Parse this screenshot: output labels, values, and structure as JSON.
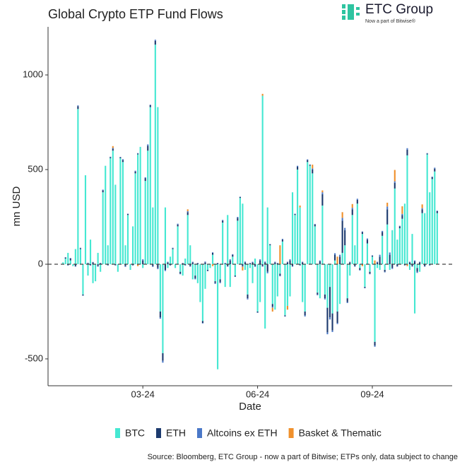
{
  "chart_data": {
    "type": "bar",
    "stacked": true,
    "title": "Global Crypto ETP Fund Flows",
    "logo_text": "ETC Group",
    "logo_subtext": "Now a part of Bitwise®",
    "xlabel": "Date",
    "ylabel": "mn USD",
    "source": "Source: Bloomberg, ETC Group - now a part of Bitwise; ETPs only, data subject to change",
    "legend": "bottom",
    "hline": 0,
    "xlim": [
      -6,
      156
    ],
    "ylim": [
      -642,
      1254
    ],
    "yticks": [
      -500,
      0,
      500,
      1000
    ],
    "xticks": [
      {
        "value": 32,
        "label": "03-24"
      },
      {
        "value": 78,
        "label": "06-24"
      },
      {
        "value": 124,
        "label": "09-24"
      }
    ],
    "categories": [
      null,
      null,
      null,
      null,
      null,
      null,
      null,
      null,
      null,
      null,
      null,
      null,
      null,
      null,
      null,
      null,
      null,
      null,
      null,
      null,
      null,
      null,
      null,
      null,
      null,
      null,
      null,
      null,
      null,
      null,
      null,
      null,
      null,
      null,
      null,
      null,
      null,
      null,
      null,
      null,
      null,
      null,
      null,
      null,
      null,
      null,
      null,
      null,
      null,
      null,
      null,
      null,
      null,
      null,
      null,
      null,
      null,
      null,
      null,
      null,
      null,
      null,
      null,
      null,
      null,
      null,
      null,
      null,
      null,
      null,
      null,
      null,
      null,
      null,
      null,
      null,
      null,
      null,
      null,
      null,
      null,
      null,
      null,
      null,
      null,
      null,
      null,
      null,
      null,
      null,
      null,
      null,
      null,
      null,
      null,
      null,
      null,
      null,
      null,
      null,
      null,
      null,
      null,
      null,
      null,
      null,
      null,
      null,
      null,
      null,
      null,
      null,
      null,
      null,
      null,
      null,
      null,
      null,
      null,
      null,
      null,
      null,
      null,
      null,
      null,
      null,
      null,
      null,
      null,
      null,
      null,
      null,
      null,
      null,
      null,
      null,
      null,
      null,
      null,
      null,
      null,
      null,
      null,
      null,
      null,
      null,
      null,
      null,
      null,
      null,
      null
    ],
    "series": [
      {
        "name": "BTC",
        "color": "#45e8d2",
        "values": [
          10,
          30,
          60,
          20,
          -10,
          80,
          820,
          80,
          -160,
          470,
          -60,
          130,
          -100,
          -90,
          60,
          -40,
          380,
          520,
          100,
          560,
          600,
          420,
          -40,
          560,
          540,
          100,
          260,
          -30,
          200,
          480,
          580,
          620,
          -20,
          440,
          600,
          830,
          300,
          1160,
          830,
          -250,
          -470,
          300,
          -20,
          40,
          80,
          -20,
          200,
          -40,
          -60,
          30,
          260,
          100,
          -80,
          -60,
          -100,
          -200,
          -300,
          -130,
          -30,
          -20,
          50,
          -90,
          -555,
          -80,
          220,
          -120,
          260,
          -120,
          40,
          -60,
          230,
          350,
          320,
          -30,
          -160,
          -20,
          -100,
          30,
          -250,
          -200,
          890,
          -340,
          300,
          100,
          -210,
          -240,
          -170,
          -50,
          120,
          -270,
          -220,
          -170,
          380,
          260,
          500,
          300,
          -200,
          -250,
          540,
          520,
          480,
          200,
          -150,
          -180,
          310,
          -160,
          -230,
          -120,
          -260,
          20,
          -250,
          -210,
          60,
          100,
          -180,
          -60,
          260,
          100,
          320,
          -20,
          160,
          -120,
          110,
          -40,
          40,
          -410,
          -20,
          -30,
          150,
          -30,
          210,
          -30,
          180,
          400,
          130,
          190,
          240,
          320,
          575,
          -30,
          160,
          -260,
          -20,
          -40,
          270,
          270,
          580,
          380,
          450,
          490,
          270
        ]
      },
      {
        "name": "ETH",
        "color": "#1c3a6e",
        "values": [
          0,
          5,
          -5,
          10,
          0,
          -10,
          15,
          5,
          -5,
          0,
          5,
          -5,
          10,
          0,
          -10,
          5,
          10,
          0,
          -5,
          5,
          10,
          -5,
          0,
          5,
          10,
          -10,
          5,
          0,
          -5,
          10,
          5,
          0,
          20,
          15,
          25,
          10,
          -10,
          20,
          -20,
          -30,
          -40,
          -30,
          10,
          -5,
          5,
          0,
          10,
          -10,
          5,
          -5,
          15,
          -10,
          10,
          -15,
          5,
          0,
          -10,
          10,
          -5,
          0,
          10,
          -10,
          5,
          -15,
          10,
          5,
          -10,
          20,
          10,
          -5,
          15,
          5,
          -10,
          10,
          -20,
          5,
          10,
          -10,
          -5,
          20,
          -10,
          10,
          -40,
          5,
          -15,
          10,
          5,
          -10,
          10,
          -5,
          10,
          20,
          -10,
          5,
          15,
          -5,
          10,
          -20,
          10,
          5,
          20,
          10,
          -10,
          15,
          60,
          -20,
          -130,
          -160,
          -90,
          30,
          -60,
          40,
          170,
          80,
          -20,
          10,
          30,
          -10,
          20,
          -10,
          10,
          -5,
          20,
          -10,
          5,
          -20,
          10,
          40,
          20,
          -10,
          80,
          50,
          -20,
          30,
          -10,
          10,
          20,
          -5,
          30,
          10,
          -10,
          15,
          -20,
          10,
          20,
          -10,
          5,
          -5,
          10,
          15,
          10
        ]
      },
      {
        "name": "Altcoins ex ETH",
        "color": "#4a78c8",
        "values": [
          0,
          2,
          -2,
          3,
          0,
          -3,
          4,
          2,
          -2,
          0,
          3,
          -2,
          2,
          0,
          -3,
          2,
          4,
          0,
          -2,
          3,
          4,
          -2,
          0,
          2,
          5,
          -4,
          2,
          0,
          -2,
          4,
          2,
          0,
          6,
          4,
          8,
          3,
          -4,
          6,
          -6,
          -8,
          -10,
          -6,
          3,
          -2,
          2,
          0,
          4,
          -3,
          2,
          -2,
          5,
          -3,
          3,
          -5,
          2,
          0,
          -3,
          4,
          -2,
          0,
          3,
          -4,
          2,
          -5,
          4,
          2,
          -3,
          6,
          3,
          -2,
          5,
          2,
          -3,
          4,
          -6,
          2,
          3,
          -4,
          -2,
          6,
          -3,
          4,
          -8,
          2,
          -5,
          3,
          2,
          -4,
          4,
          -2,
          3,
          6,
          -3,
          2,
          5,
          -2,
          3,
          -6,
          4,
          2,
          6,
          3,
          -4,
          5,
          10,
          -6,
          -10,
          -12,
          -8,
          8,
          -6,
          10,
          15,
          12,
          -5,
          3,
          8,
          -3,
          6,
          -3,
          3,
          -2,
          6,
          -3,
          2,
          -6,
          3,
          10,
          6,
          -3,
          15,
          12,
          -5,
          8,
          -3,
          3,
          6,
          -2,
          8,
          3,
          -3,
          5,
          -6,
          3,
          6,
          -3,
          2,
          -2,
          3,
          5,
          3
        ]
      },
      {
        "name": "Basket & Thematic",
        "color": "#f0902c",
        "values": [
          0,
          0,
          0,
          0,
          0,
          0,
          0,
          0,
          0,
          0,
          0,
          0,
          0,
          0,
          0,
          0,
          0,
          0,
          0,
          0,
          10,
          0,
          0,
          0,
          0,
          0,
          0,
          0,
          0,
          0,
          -10,
          0,
          0,
          0,
          0,
          0,
          0,
          0,
          0,
          0,
          0,
          0,
          0,
          0,
          0,
          0,
          0,
          0,
          0,
          0,
          10,
          0,
          0,
          0,
          0,
          0,
          0,
          0,
          0,
          0,
          -10,
          0,
          0,
          0,
          0,
          0,
          0,
          0,
          0,
          0,
          0,
          0,
          -20,
          0,
          0,
          0,
          0,
          0,
          0,
          0,
          10,
          0,
          0,
          0,
          -20,
          0,
          0,
          100,
          0,
          0,
          -20,
          0,
          0,
          0,
          0,
          10,
          0,
          0,
          0,
          0,
          20,
          0,
          0,
          0,
          10,
          0,
          0,
          0,
          0,
          0,
          40,
          0,
          30,
          0,
          0,
          0,
          20,
          0,
          0,
          0,
          -10,
          0,
          0,
          0,
          0,
          20,
          0,
          0,
          0,
          0,
          20,
          0,
          0,
          60,
          0,
          0,
          40,
          0,
          -10,
          0,
          0,
          0,
          0,
          0,
          20,
          0,
          0,
          0,
          0,
          0,
          0
        ]
      }
    ]
  }
}
